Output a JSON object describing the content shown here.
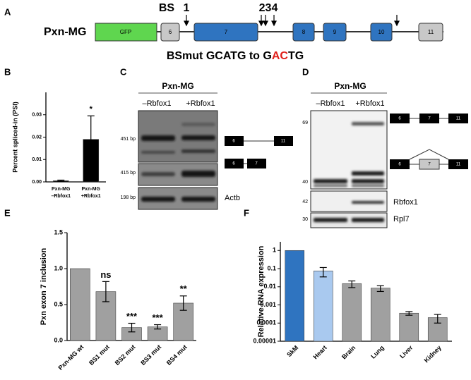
{
  "panel_labels": [
    "A",
    "B",
    "C",
    "D",
    "E",
    "F"
  ],
  "gene_model": {
    "name": "Pxn-MG",
    "exons": [
      "GFP",
      "6",
      "7",
      "8",
      "9",
      "10",
      "11"
    ],
    "binding_site_label": "BS",
    "site_labels": [
      "1",
      "234"
    ],
    "mutation": {
      "prefix": "BSmut GCATG to G",
      "highlight": "AC",
      "suffix": "TG"
    }
  },
  "gel_c": {
    "title": "Pxn-MG",
    "lanes": [
      "–Rbfox1",
      "+Rbfox1"
    ],
    "sizes": [
      "451 bp",
      "415 bp",
      "198 bp"
    ],
    "control": "Actb",
    "isoforms": [
      [
        "6",
        "11"
      ],
      [
        "6",
        "7"
      ]
    ]
  },
  "gel_d": {
    "title": "Pxn-MG",
    "lanes": [
      "–Rbfox1",
      "+Rbfox1"
    ],
    "markers": [
      "69",
      "40",
      "42",
      "30"
    ],
    "labels": [
      "Rbfox1",
      "Rpl7"
    ],
    "isoforms": [
      [
        "6",
        "7",
        "11"
      ],
      [
        "6",
        "7",
        "11"
      ]
    ]
  },
  "chart_data": [
    {
      "type": "bar",
      "ylabel": "Percent spliced-in (PSI)",
      "categories": [
        "Pxn-MG –Rbfox1",
        "Pxn-MG +Rbfox1"
      ],
      "values": [
        0.0005,
        0.019
      ],
      "errors": [
        0.0003,
        0.0105
      ],
      "annotations": [
        null,
        "*"
      ],
      "color": "#000000",
      "ylim": [
        0,
        0.04
      ],
      "yticks": [
        {
          "value": 0,
          "label": "0.00"
        },
        0.01,
        0.02,
        0.03
      ]
    },
    {
      "type": "bar",
      "ylabel": "Pxn exon 7 inclusion",
      "categories": [
        "Pxn-MG wt",
        "BS1 mut",
        "BS2 mut",
        "BS3 mut",
        "BS4 mut"
      ],
      "values": [
        1.0,
        0.68,
        0.18,
        0.19,
        0.52
      ],
      "errors": [
        0,
        0.14,
        0.06,
        0.03,
        0.1
      ],
      "annotations": [
        null,
        "ns",
        "***",
        "***",
        "**"
      ],
      "color": "#a0a0a0",
      "ylim": [
        0,
        1.5
      ],
      "yticks": [
        {
          "value": 0,
          "label": "0.0"
        },
        0.5,
        {
          "value": 1,
          "label": "1.0"
        },
        1.5
      ]
    },
    {
      "type": "bar",
      "ylabel": "Relative RNA expression",
      "log_scale": true,
      "categories": [
        "SkM",
        "Heart",
        "Brain",
        "Lung",
        "Liver",
        "Kidney"
      ],
      "values": [
        1,
        0.075,
        0.015,
        0.0085,
        0.00035,
        0.0002
      ],
      "errors": [
        0,
        0.04,
        0.006,
        0.003,
        8e-05,
        0.0001
      ],
      "colors": [
        "#2f74c0",
        "#a9c9ef",
        "#a0a0a0",
        "#a0a0a0",
        "#a0a0a0",
        "#a0a0a0"
      ],
      "ylim": [
        1e-05,
        3
      ],
      "yticks": [
        1,
        0.1,
        0.01,
        0.001,
        0.0001,
        1e-05
      ]
    }
  ]
}
